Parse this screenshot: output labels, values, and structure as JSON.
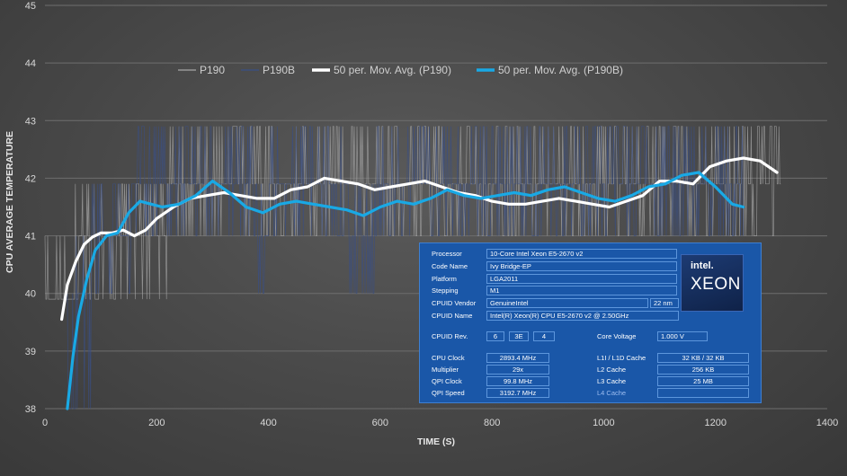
{
  "chart_data": {
    "type": "line",
    "title": "",
    "xlabel": "TIME (S)",
    "ylabel": "CPU AVERAGE TEMPERATURE",
    "xlim": [
      0,
      1400
    ],
    "ylim": [
      38,
      45
    ],
    "x_ticks": [
      "0",
      "200",
      "400",
      "600",
      "800",
      "1000",
      "1200",
      "1400"
    ],
    "y_ticks": [
      "38",
      "39",
      "40",
      "41",
      "42",
      "43",
      "44",
      "45"
    ],
    "grid": "horizontal",
    "legend_position": "top-left",
    "series": [
      {
        "name": "P190",
        "style": "raw",
        "color": "#a8a8a8",
        "x_range": [
          0,
          1318
        ],
        "base_levels": [
          39.9,
          41.0,
          41.9,
          42.9
        ],
        "noisy": true
      },
      {
        "name": "P190B",
        "style": "raw",
        "color": "#3a4f86",
        "x_range": [
          40,
          1250
        ],
        "base_levels": [
          38.0,
          40.0,
          41.0,
          41.9,
          42.9
        ],
        "noisy": true
      },
      {
        "name": "50 per. Mov. Avg. (P190)",
        "style": "smooth",
        "color": "#ffffff",
        "x": [
          30,
          40,
          55,
          70,
          85,
          100,
          120,
          140,
          160,
          180,
          200,
          230,
          260,
          290,
          320,
          350,
          380,
          410,
          440,
          470,
          500,
          530,
          560,
          590,
          620,
          650,
          680,
          710,
          740,
          770,
          800,
          830,
          860,
          890,
          920,
          950,
          980,
          1010,
          1040,
          1070,
          1100,
          1130,
          1160,
          1190,
          1220,
          1250,
          1280,
          1310
        ],
        "y": [
          39.55,
          40.15,
          40.55,
          40.85,
          40.98,
          41.05,
          41.05,
          41.1,
          41.0,
          41.1,
          41.3,
          41.5,
          41.65,
          41.7,
          41.75,
          41.7,
          41.65,
          41.65,
          41.8,
          41.85,
          42.0,
          41.95,
          41.9,
          41.8,
          41.85,
          41.9,
          41.95,
          41.85,
          41.75,
          41.7,
          41.6,
          41.55,
          41.55,
          41.6,
          41.65,
          41.6,
          41.55,
          41.5,
          41.6,
          41.7,
          41.95,
          41.95,
          41.9,
          42.2,
          42.3,
          42.35,
          42.3,
          42.1
        ]
      },
      {
        "name": "50 per. Mov. Avg. (P190B)",
        "style": "smooth",
        "color": "#19a9e5",
        "x": [
          40,
          50,
          60,
          75,
          90,
          110,
          130,
          150,
          170,
          190,
          210,
          240,
          270,
          300,
          330,
          360,
          390,
          420,
          450,
          480,
          510,
          540,
          570,
          600,
          630,
          660,
          690,
          720,
          750,
          780,
          810,
          840,
          870,
          900,
          930,
          960,
          990,
          1020,
          1050,
          1080,
          1110,
          1140,
          1170,
          1200,
          1230,
          1250
        ],
        "y": [
          38.0,
          38.9,
          39.6,
          40.25,
          40.75,
          41.0,
          41.05,
          41.4,
          41.6,
          41.55,
          41.5,
          41.55,
          41.7,
          41.95,
          41.75,
          41.5,
          41.4,
          41.55,
          41.6,
          41.55,
          41.5,
          41.45,
          41.35,
          41.5,
          41.6,
          41.55,
          41.65,
          41.8,
          41.7,
          41.65,
          41.7,
          41.75,
          41.7,
          41.8,
          41.85,
          41.75,
          41.65,
          41.6,
          41.7,
          41.85,
          41.9,
          42.05,
          42.1,
          41.85,
          41.55,
          41.5
        ]
      }
    ]
  },
  "cpuz": {
    "processor_label": "Processor",
    "processor": "10-Core Intel Xeon E5-2670 v2",
    "codename_label": "Code Name",
    "codename": "Ivy Bridge-EP",
    "platform_label": "Platform",
    "platform": "LGA2011",
    "stepping_label": "Stepping",
    "stepping": "M1",
    "vendor_label": "CPUID Vendor",
    "vendor": "GenuineIntel",
    "process": "22 nm",
    "name_label": "CPUID Name",
    "name": "Intel(R) Xeon(R) CPU E5-2670 v2 @ 2.50GHz",
    "rev_label": "CPUID Rev.",
    "rev_family": "6",
    "rev_model": "3E",
    "rev_stepping": "4",
    "voltage_label": "Core Voltage",
    "voltage": "1.000 V",
    "clock_label": "CPU Clock",
    "clock": "2893.4 MHz",
    "multiplier_label": "Multiplier",
    "multiplier": "29x",
    "qpi_clock_label": "QPI Clock",
    "qpi_clock": "99.8 MHz",
    "qpi_speed_label": "QPI Speed",
    "qpi_speed": "3192.7 MHz",
    "l1_label": "L1I / L1D Cache",
    "l1": "32 KB / 32 KB",
    "l2_label": "L2 Cache",
    "l2": "256 KB",
    "l3_label": "L3 Cache",
    "l3": "25 MB",
    "l4_label": "L4 Cache",
    "l4": "",
    "logo_brand": "intel.",
    "logo_product": "XEON"
  }
}
